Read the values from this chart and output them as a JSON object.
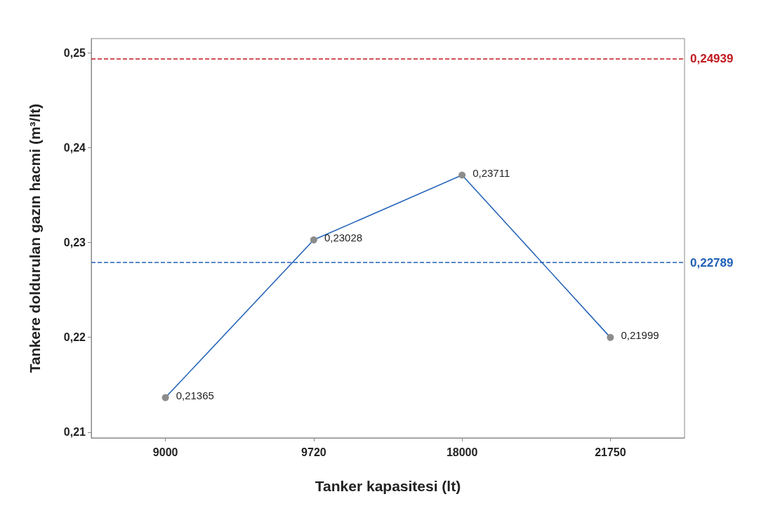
{
  "chart_data": {
    "type": "line",
    "xlabel": "Tanker kapasitesi (lt)",
    "ylabel": "Tankere doldurulan gazın hacmi (m³/lt)",
    "categories": [
      "9000",
      "9720",
      "18000",
      "21750"
    ],
    "series": [
      {
        "color": "#1f5fb5",
        "values": [
          0.21365,
          0.23028,
          0.23711,
          0.21999
        ],
        "value_labels": [
          "0,21365",
          "0,23028",
          "0,23711",
          "0,21999"
        ]
      }
    ],
    "ylim": [
      0.2094,
      0.2515
    ],
    "yticks": [
      {
        "value": 0.21,
        "label": "0,21"
      },
      {
        "value": 0.22,
        "label": "0,22"
      },
      {
        "value": 0.23,
        "label": "0,23"
      },
      {
        "value": 0.24,
        "label": "0,24"
      },
      {
        "value": 0.25,
        "label": "0,25"
      }
    ],
    "ref_lines": [
      {
        "axis": "y",
        "value": 0.24939,
        "label": "0,24939",
        "color": "#c0181e",
        "line_style": "dashed"
      },
      {
        "axis": "y",
        "value": 0.22789,
        "label": "0,22789",
        "color": "#1f5fb5",
        "line_style": "dashed"
      }
    ],
    "marker": "circle",
    "line_style": "solid",
    "grid": false
  }
}
